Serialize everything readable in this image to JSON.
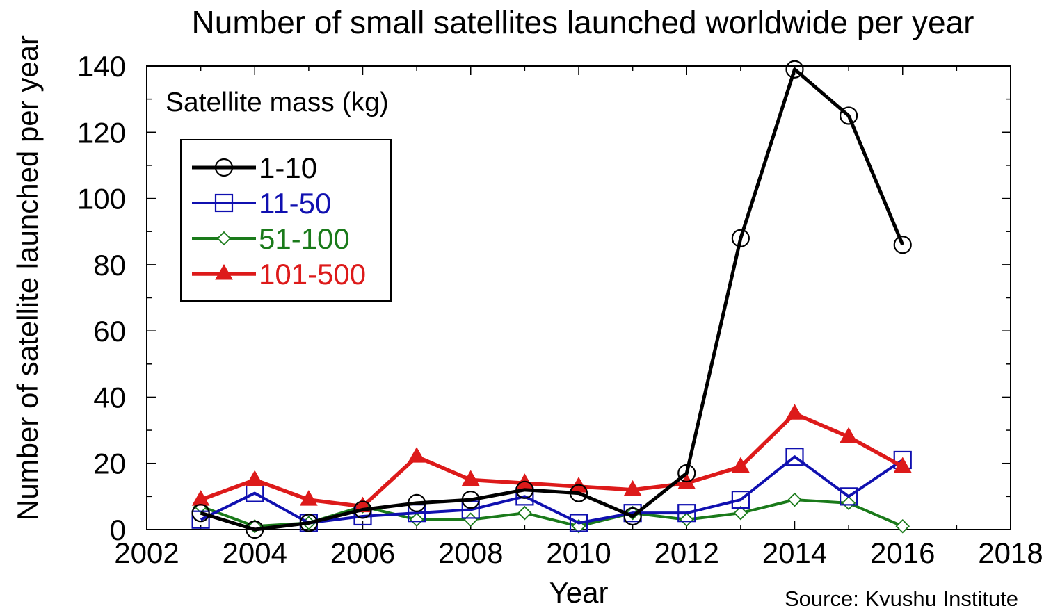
{
  "chart_data": {
    "type": "line",
    "title": "Number of small satellites launched worldwide per year",
    "xlabel": "Year",
    "ylabel": "Number of satellite launched per year",
    "xlim": [
      2002,
      2018
    ],
    "ylim": [
      0,
      140
    ],
    "xticks": [
      2002,
      2004,
      2006,
      2008,
      2010,
      2012,
      2014,
      2016,
      2018
    ],
    "yticks": [
      0,
      20,
      40,
      60,
      80,
      100,
      120,
      140
    ],
    "x_minor_step": 1,
    "y_minor_step": 10,
    "grid": false,
    "legend": {
      "title": "Satellite mass (kg)",
      "position": "top-left"
    },
    "series": [
      {
        "name": "1-10",
        "color": "#000000",
        "marker": "open-circle",
        "x": [
          2003,
          2004,
          2005,
          2006,
          2007,
          2008,
          2009,
          2010,
          2011,
          2012,
          2013,
          2014,
          2015,
          2016
        ],
        "values": [
          5,
          0,
          2,
          6,
          8,
          9,
          12,
          11,
          4,
          17,
          88,
          139,
          125,
          86
        ]
      },
      {
        "name": "11-50",
        "color": "#1010b0",
        "marker": "open-square",
        "x": [
          2003,
          2004,
          2005,
          2006,
          2007,
          2008,
          2009,
          2010,
          2011,
          2012,
          2013,
          2014,
          2015,
          2016
        ],
        "values": [
          3,
          11,
          2,
          4,
          5,
          6,
          10,
          2,
          5,
          5,
          9,
          22,
          10,
          21
        ]
      },
      {
        "name": "51-100",
        "color": "#1a7a1a",
        "marker": "open-diamond",
        "x": [
          2003,
          2004,
          2005,
          2006,
          2007,
          2008,
          2009,
          2010,
          2011,
          2012,
          2013,
          2014,
          2015,
          2016
        ],
        "values": [
          7,
          1,
          2,
          7,
          3,
          3,
          5,
          1,
          5,
          3,
          5,
          9,
          8,
          1
        ]
      },
      {
        "name": "101-500",
        "color": "#dd1a1a",
        "marker": "filled-triangle",
        "x": [
          2003,
          2004,
          2005,
          2006,
          2007,
          2008,
          2009,
          2010,
          2011,
          2012,
          2013,
          2014,
          2015,
          2016
        ],
        "values": [
          9,
          15,
          9,
          7,
          22,
          15,
          14,
          13,
          12,
          14,
          19,
          35,
          28,
          19
        ]
      }
    ],
    "source": "Source: Kyushu Institute"
  }
}
